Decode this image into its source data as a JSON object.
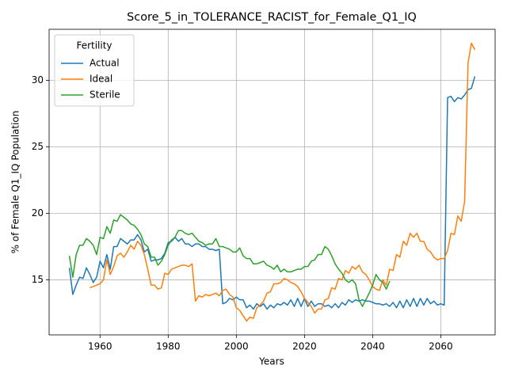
{
  "chart_data": {
    "type": "line",
    "title": "Score_5_in_TOLERANCE_RACIST_for_Female_Q1_IQ",
    "x_label": "Years",
    "y_label": "% of Female Q1_IQ Population",
    "legend_title": "Fertility",
    "legend": "upper left",
    "grid": true,
    "x": [
      1951,
      1952,
      1953,
      1954,
      1955,
      1956,
      1957,
      1958,
      1959,
      1960,
      1961,
      1962,
      1963,
      1964,
      1965,
      1966,
      1967,
      1968,
      1969,
      1970,
      1971,
      1972,
      1973,
      1974,
      1975,
      1976,
      1977,
      1978,
      1979,
      1980,
      1981,
      1982,
      1983,
      1984,
      1985,
      1986,
      1987,
      1988,
      1989,
      1990,
      1991,
      1992,
      1993,
      1994,
      1995,
      1996,
      1997,
      1998,
      1999,
      2000,
      2001,
      2002,
      2003,
      2004,
      2005,
      2006,
      2007,
      2008,
      2009,
      2010,
      2011,
      2012,
      2013,
      2014,
      2015,
      2016,
      2017,
      2018,
      2019,
      2020,
      2021,
      2022,
      2023,
      2024,
      2025,
      2026,
      2027,
      2028,
      2029,
      2030,
      2031,
      2032,
      2033,
      2034,
      2035,
      2036,
      2037,
      2038,
      2039,
      2040,
      2041,
      2042,
      2043,
      2044,
      2045,
      2046,
      2047,
      2048,
      2049,
      2050,
      2051,
      2052,
      2053,
      2054,
      2055,
      2056,
      2057,
      2058,
      2059,
      2060,
      2061,
      2062,
      2063,
      2064,
      2065,
      2066,
      2067,
      2068,
      2069,
      2070
    ],
    "series": [
      {
        "name": "Actual",
        "color": "#1f77b4",
        "values": [
          15.9,
          13.9,
          14.6,
          15.2,
          15.1,
          15.9,
          15.4,
          14.8,
          15.2,
          16.4,
          15.9,
          16.9,
          15.8,
          17.5,
          17.5,
          18.1,
          17.9,
          17.7,
          18.0,
          18.0,
          18.4,
          18.0,
          17.1,
          17.3,
          16.4,
          16.5,
          16.5,
          16.6,
          17.0,
          17.8,
          17.9,
          18.2,
          17.9,
          18.1,
          17.7,
          17.7,
          17.5,
          17.7,
          17.7,
          17.5,
          17.5,
          17.3,
          17.3,
          17.2,
          17.3,
          13.2,
          13.3,
          13.6,
          13.5,
          13.7,
          13.5,
          13.5,
          12.9,
          13.1,
          12.8,
          13.2,
          13.0,
          13.2,
          12.8,
          13.1,
          12.9,
          13.2,
          13.1,
          13.3,
          13.1,
          13.5,
          13.0,
          13.6,
          13.0,
          13.6,
          13.0,
          13.4,
          13.0,
          13.2,
          13.2,
          13.0,
          13.1,
          12.9,
          13.2,
          12.9,
          13.3,
          13.1,
          13.5,
          13.3,
          13.5,
          13.4,
          13.5,
          13.4,
          13.4,
          13.3,
          13.2,
          13.2,
          13.1,
          13.2,
          13.0,
          13.3,
          12.9,
          13.4,
          12.9,
          13.5,
          13.0,
          13.6,
          13.0,
          13.6,
          13.1,
          13.6,
          13.2,
          13.4,
          13.1,
          13.2,
          13.1,
          28.7,
          28.8,
          28.4,
          28.7,
          28.6,
          28.9,
          29.3,
          29.4,
          30.3
        ]
      },
      {
        "name": "Ideal",
        "color": "#ff7f0e",
        "values": [
          null,
          null,
          null,
          null,
          null,
          null,
          14.4,
          14.5,
          14.6,
          14.7,
          15.0,
          16.5,
          15.4,
          16.0,
          16.8,
          17.0,
          16.7,
          17.1,
          17.6,
          17.3,
          17.9,
          17.6,
          16.9,
          15.8,
          14.6,
          14.6,
          14.3,
          14.4,
          15.5,
          15.4,
          15.8,
          15.9,
          16.0,
          16.1,
          16.1,
          16.0,
          16.2,
          13.4,
          13.8,
          13.7,
          13.9,
          13.8,
          13.9,
          14.0,
          13.8,
          14.2,
          14.3,
          13.9,
          13.7,
          12.9,
          12.7,
          12.3,
          11.9,
          12.2,
          12.1,
          12.9,
          13.1,
          13.4,
          14.0,
          14.1,
          14.7,
          14.7,
          14.8,
          15.1,
          15.0,
          14.8,
          14.7,
          14.5,
          14.1,
          13.6,
          13.3,
          13.0,
          12.5,
          12.8,
          12.8,
          13.5,
          13.6,
          14.4,
          14.3,
          15.1,
          15.0,
          15.7,
          15.5,
          16.0,
          15.8,
          16.1,
          15.6,
          15.4,
          15.0,
          14.5,
          14.3,
          14.2,
          15.0,
          14.6,
          15.8,
          15.7,
          16.9,
          16.7,
          17.9,
          17.6,
          18.5,
          18.2,
          18.5,
          17.9,
          17.9,
          17.3,
          17.1,
          16.7,
          16.5,
          16.6,
          16.6,
          17.2,
          18.5,
          18.4,
          19.8,
          19.4,
          20.9,
          31.3,
          32.8,
          32.3
        ]
      },
      {
        "name": "Sterile",
        "color": "#2ca02c",
        "values": [
          16.8,
          15.2,
          16.9,
          17.6,
          17.6,
          18.1,
          17.9,
          17.6,
          16.9,
          18.2,
          18.1,
          19.0,
          18.5,
          19.5,
          19.4,
          19.9,
          19.7,
          19.5,
          19.2,
          19.1,
          18.8,
          18.4,
          17.7,
          17.5,
          16.7,
          16.7,
          16.1,
          16.4,
          16.9,
          17.6,
          18.0,
          18.2,
          18.7,
          18.7,
          18.5,
          18.4,
          18.5,
          18.2,
          17.9,
          17.8,
          17.6,
          17.7,
          17.7,
          18.1,
          17.5,
          17.5,
          17.4,
          17.3,
          17.1,
          17.1,
          17.4,
          16.8,
          16.6,
          16.6,
          16.2,
          16.2,
          16.3,
          16.4,
          16.1,
          16.0,
          15.8,
          16.1,
          15.6,
          15.8,
          15.6,
          15.6,
          15.7,
          15.8,
          15.8,
          16.0,
          16.0,
          16.4,
          16.5,
          16.9,
          16.9,
          17.5,
          17.3,
          16.8,
          16.2,
          15.8,
          15.5,
          15.0,
          14.8,
          15.0,
          14.7,
          13.5,
          13.0,
          13.5,
          14.0,
          14.6,
          15.4,
          15.0,
          14.8,
          14.3,
          14.9,
          null,
          null,
          null,
          null,
          null,
          null,
          null,
          null,
          null,
          null,
          null,
          null,
          null,
          null,
          null,
          null,
          null,
          null,
          null,
          null,
          null,
          null,
          null,
          null,
          null
        ]
      }
    ],
    "xlim": [
      1945.05,
      2075.95
    ],
    "xticks": [
      1960,
      1980,
      2000,
      2020,
      2040,
      2060
    ],
    "ylim": [
      10.86,
      33.84
    ],
    "yticks": [
      15,
      20,
      25,
      30
    ]
  }
}
